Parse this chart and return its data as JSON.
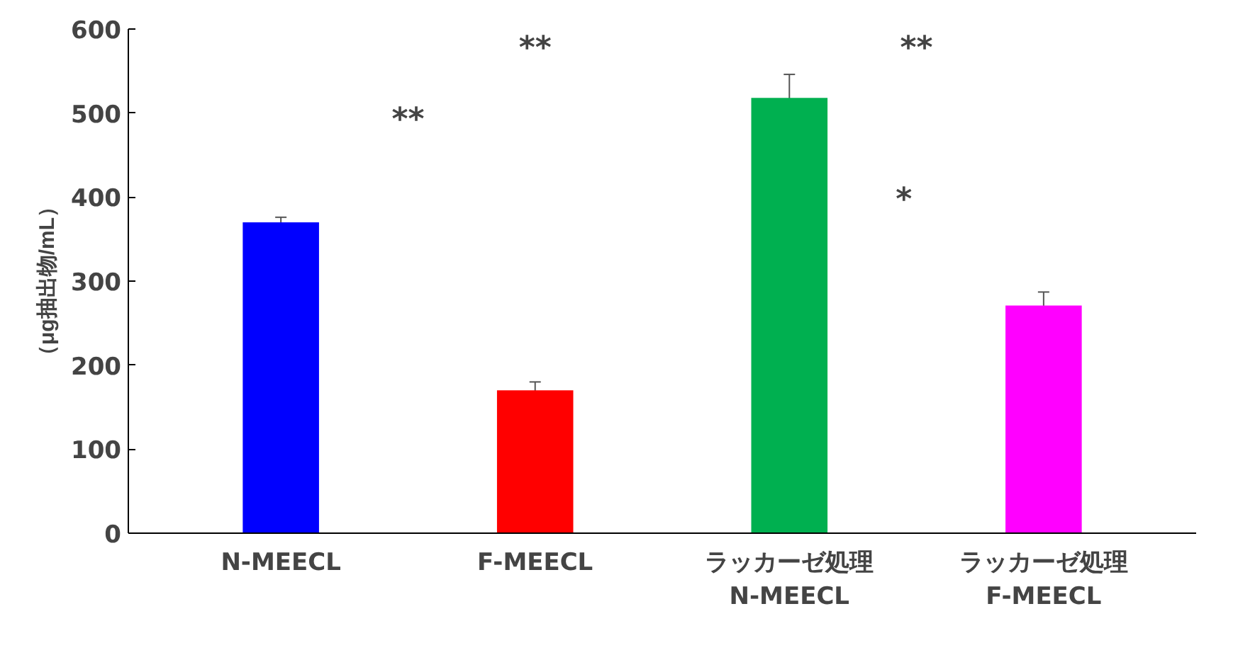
{
  "chart_data": {
    "type": "bar",
    "ylabel": "（μg抽出物/mL）",
    "categories": [
      "N-MEECL",
      "F-MEECL",
      "ラッカーゼ処理\nN-MEECL",
      "ラッカーゼ処理\nF-MEECL"
    ],
    "values": [
      370,
      170,
      518,
      271
    ],
    "errors": [
      6,
      10,
      28,
      16
    ],
    "colors": [
      "#0000ff",
      "#ff0000",
      "#00b050",
      "#ff00ff"
    ],
    "ylim": [
      0,
      600
    ],
    "yticks": [
      0,
      100,
      200,
      300,
      400,
      500,
      600
    ],
    "grid": false,
    "annotations": [
      "**",
      "**",
      "**",
      "*"
    ]
  }
}
